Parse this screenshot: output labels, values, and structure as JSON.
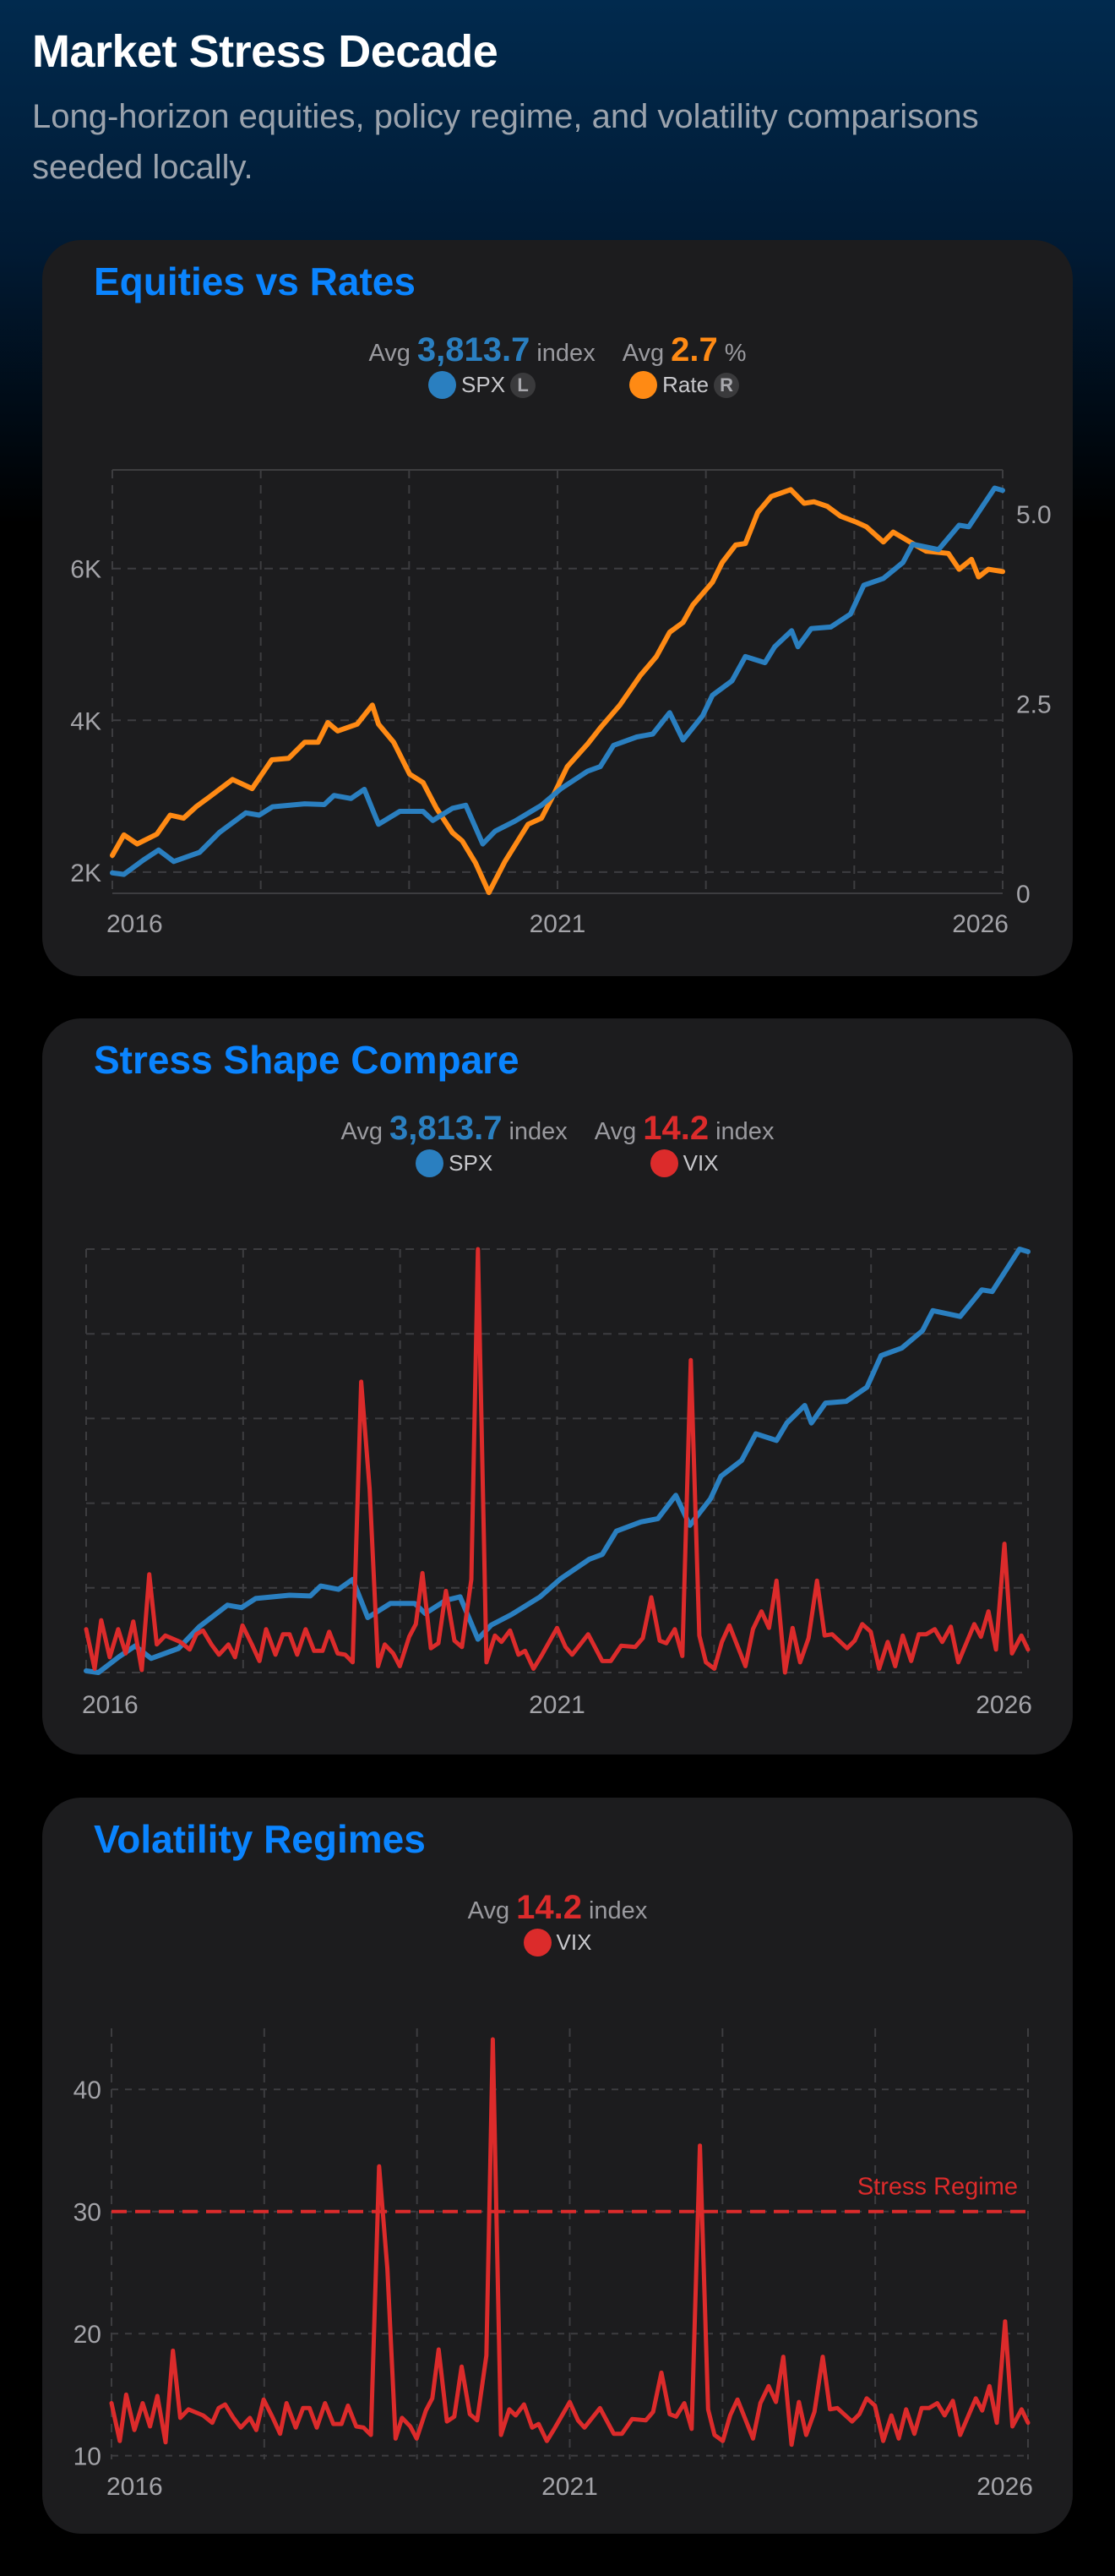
{
  "header": {
    "title": "Market Stress Decade",
    "subtitle": "Long-horizon equities, policy regime, and volatility comparisons seeded locally."
  },
  "colors": {
    "accent": "#0a84ff",
    "spx": "#2a7fc0",
    "rate": "#ff8a14",
    "vix": "#dc2b2b",
    "card": "#1c1c1e"
  },
  "cards": [
    {
      "title": "Equities vs Rates",
      "legend": [
        {
          "avg_label": "Avg",
          "avg_value": "3,813.7",
          "unit": "index",
          "series": "SPX",
          "axis_badge": "L",
          "color": "#2a7fc0"
        },
        {
          "avg_label": "Avg",
          "avg_value": "2.7",
          "unit": "%",
          "series": "Rate",
          "axis_badge": "R",
          "color": "#ff8a14"
        }
      ]
    },
    {
      "title": "Stress Shape Compare",
      "legend": [
        {
          "avg_label": "Avg",
          "avg_value": "3,813.7",
          "unit": "index",
          "series": "SPX",
          "color": "#2a7fc0"
        },
        {
          "avg_label": "Avg",
          "avg_value": "14.2",
          "unit": "index",
          "series": "VIX",
          "color": "#dc2b2b"
        }
      ]
    },
    {
      "title": "Volatility Regimes",
      "legend": [
        {
          "avg_label": "Avg",
          "avg_value": "14.2",
          "unit": "index",
          "series": "VIX",
          "color": "#dc2b2b"
        }
      ]
    }
  ],
  "chart_data": [
    {
      "type": "line",
      "title": "Equities vs Rates",
      "xlim": [
        2016,
        2026
      ],
      "x_ticks": [
        "2016",
        "2021",
        "2026"
      ],
      "y_left": {
        "ticks": [
          "2K",
          "4K",
          "6K"
        ],
        "tick_values": [
          2000,
          4000,
          6000
        ],
        "ylim": [
          1720,
          7300
        ]
      },
      "y_right": {
        "ticks": [
          "0",
          "2.5",
          "5.0"
        ],
        "tick_values": [
          0,
          2.5,
          5.0
        ],
        "ylim": [
          0,
          5.58
        ]
      },
      "grid": true,
      "series": [
        {
          "name": "SPX",
          "axis": "left",
          "color": "#2a7fc0",
          "points": [
            [
              2016.0,
              1990
            ],
            [
              2016.13,
              1970
            ],
            [
              2016.35,
              2160
            ],
            [
              2016.52,
              2290
            ],
            [
              2016.69,
              2140
            ],
            [
              2016.98,
              2260
            ],
            [
              2017.2,
              2520
            ],
            [
              2017.5,
              2780
            ],
            [
              2017.65,
              2750
            ],
            [
              2017.8,
              2860
            ],
            [
              2018.16,
              2900
            ],
            [
              2018.38,
              2890
            ],
            [
              2018.49,
              3010
            ],
            [
              2018.68,
              2970
            ],
            [
              2018.83,
              3090
            ],
            [
              2018.99,
              2630
            ],
            [
              2019.23,
              2800
            ],
            [
              2019.49,
              2800
            ],
            [
              2019.6,
              2680
            ],
            [
              2019.82,
              2840
            ],
            [
              2019.97,
              2880
            ],
            [
              2020.16,
              2370
            ],
            [
              2020.3,
              2540
            ],
            [
              2020.52,
              2670
            ],
            [
              2020.82,
              2880
            ],
            [
              2021.04,
              3100
            ],
            [
              2021.34,
              3330
            ],
            [
              2021.48,
              3390
            ],
            [
              2021.63,
              3670
            ],
            [
              2021.89,
              3780
            ],
            [
              2022.07,
              3820
            ],
            [
              2022.26,
              4100
            ],
            [
              2022.41,
              3740
            ],
            [
              2022.63,
              4060
            ],
            [
              2022.74,
              4330
            ],
            [
              2022.96,
              4520
            ],
            [
              2023.11,
              4840
            ],
            [
              2023.33,
              4760
            ],
            [
              2023.44,
              4970
            ],
            [
              2023.63,
              5180
            ],
            [
              2023.7,
              4970
            ],
            [
              2023.85,
              5210
            ],
            [
              2024.07,
              5230
            ],
            [
              2024.29,
              5400
            ],
            [
              2024.44,
              5780
            ],
            [
              2024.66,
              5870
            ],
            [
              2024.88,
              6080
            ],
            [
              2024.99,
              6320
            ],
            [
              2025.28,
              6250
            ],
            [
              2025.51,
              6570
            ],
            [
              2025.62,
              6550
            ],
            [
              2025.91,
              7060
            ],
            [
              2026.0,
              7030
            ]
          ]
        },
        {
          "name": "Rate",
          "axis": "right",
          "color": "#ff8a14",
          "points": [
            [
              2016.0,
              0.5
            ],
            [
              2016.13,
              0.77
            ],
            [
              2016.28,
              0.65
            ],
            [
              2016.5,
              0.78
            ],
            [
              2016.65,
              1.03
            ],
            [
              2016.8,
              0.99
            ],
            [
              2016.94,
              1.14
            ],
            [
              2017.09,
              1.27
            ],
            [
              2017.35,
              1.5
            ],
            [
              2017.57,
              1.38
            ],
            [
              2017.79,
              1.76
            ],
            [
              2017.98,
              1.78
            ],
            [
              2018.16,
              1.99
            ],
            [
              2018.31,
              1.99
            ],
            [
              2018.42,
              2.25
            ],
            [
              2018.53,
              2.14
            ],
            [
              2018.75,
              2.23
            ],
            [
              2018.92,
              2.48
            ],
            [
              2018.99,
              2.23
            ],
            [
              2019.16,
              1.99
            ],
            [
              2019.34,
              1.57
            ],
            [
              2019.49,
              1.46
            ],
            [
              2019.64,
              1.12
            ],
            [
              2019.82,
              0.8
            ],
            [
              2019.93,
              0.69
            ],
            [
              2020.08,
              0.4
            ],
            [
              2020.23,
              0.01
            ],
            [
              2020.41,
              0.42
            ],
            [
              2020.67,
              0.91
            ],
            [
              2020.82,
              0.99
            ],
            [
              2020.97,
              1.33
            ],
            [
              2021.11,
              1.67
            ],
            [
              2021.34,
              1.97
            ],
            [
              2021.48,
              2.18
            ],
            [
              2021.7,
              2.48
            ],
            [
              2021.93,
              2.87
            ],
            [
              2022.11,
              3.12
            ],
            [
              2022.26,
              3.44
            ],
            [
              2022.41,
              3.57
            ],
            [
              2022.52,
              3.8
            ],
            [
              2022.74,
              4.1
            ],
            [
              2022.85,
              4.36
            ],
            [
              2023.0,
              4.59
            ],
            [
              2023.11,
              4.61
            ],
            [
              2023.25,
              5.02
            ],
            [
              2023.4,
              5.23
            ],
            [
              2023.62,
              5.32
            ],
            [
              2023.77,
              5.14
            ],
            [
              2023.88,
              5.16
            ],
            [
              2024.03,
              5.1
            ],
            [
              2024.18,
              4.97
            ],
            [
              2024.36,
              4.89
            ],
            [
              2024.47,
              4.83
            ],
            [
              2024.66,
              4.63
            ],
            [
              2024.77,
              4.76
            ],
            [
              2024.99,
              4.61
            ],
            [
              2025.14,
              4.51
            ],
            [
              2025.39,
              4.48
            ],
            [
              2025.51,
              4.27
            ],
            [
              2025.65,
              4.4
            ],
            [
              2025.73,
              4.17
            ],
            [
              2025.84,
              4.27
            ],
            [
              2026.0,
              4.24
            ]
          ]
        }
      ]
    },
    {
      "type": "line",
      "title": "Stress Shape Compare",
      "xlim": [
        2016,
        2026
      ],
      "x_ticks": [
        "2016",
        "2021",
        "2026"
      ],
      "y_scale": "each series normalized to its own range",
      "grid": true,
      "series_refs": [
        "SPX",
        "VIX"
      ]
    },
    {
      "type": "line",
      "title": "Volatility Regimes",
      "xlim": [
        2016,
        2026
      ],
      "x_ticks": [
        "2016",
        "2021",
        "2026"
      ],
      "y": {
        "ticks": [
          "10",
          "20",
          "30",
          "40"
        ],
        "tick_values": [
          10,
          20,
          30,
          40
        ],
        "ylim": [
          9.7,
          45
        ]
      },
      "grid": true,
      "reference_line": {
        "label": "Stress Regime",
        "value": 30,
        "color": "#dc2b2b",
        "style": "dashed"
      },
      "series": [
        {
          "name": "VIX",
          "color": "#dc2b2b",
          "points": [
            [
              2016.0,
              14.3
            ],
            [
              2016.09,
              11.2
            ],
            [
              2016.16,
              15.0
            ],
            [
              2016.25,
              12.1
            ],
            [
              2016.34,
              14.3
            ],
            [
              2016.42,
              12.4
            ],
            [
              2016.5,
              14.9
            ],
            [
              2016.59,
              11.1
            ],
            [
              2016.67,
              18.6
            ],
            [
              2016.75,
              13.1
            ],
            [
              2016.84,
              13.8
            ],
            [
              2017.0,
              13.3
            ],
            [
              2017.1,
              12.7
            ],
            [
              2017.17,
              13.9
            ],
            [
              2017.24,
              14.2
            ],
            [
              2017.33,
              13.1
            ],
            [
              2017.41,
              12.3
            ],
            [
              2017.51,
              13.1
            ],
            [
              2017.58,
              12.1
            ],
            [
              2017.66,
              14.6
            ],
            [
              2017.76,
              13.1
            ],
            [
              2017.84,
              11.8
            ],
            [
              2017.91,
              14.3
            ],
            [
              2018.01,
              12.3
            ],
            [
              2018.09,
              13.9
            ],
            [
              2018.16,
              13.9
            ],
            [
              2018.24,
              12.3
            ],
            [
              2018.33,
              14.3
            ],
            [
              2018.42,
              12.6
            ],
            [
              2018.51,
              12.6
            ],
            [
              2018.58,
              14.1
            ],
            [
              2018.67,
              12.4
            ],
            [
              2018.75,
              12.3
            ],
            [
              2018.83,
              11.7
            ],
            [
              2018.92,
              33.7
            ],
            [
              2019.01,
              25.3
            ],
            [
              2019.1,
              11.4
            ],
            [
              2019.17,
              13.1
            ],
            [
              2019.26,
              12.4
            ],
            [
              2019.33,
              11.4
            ],
            [
              2019.43,
              13.7
            ],
            [
              2019.5,
              14.7
            ],
            [
              2019.57,
              18.7
            ],
            [
              2019.66,
              12.8
            ],
            [
              2019.74,
              13.2
            ],
            [
              2019.82,
              17.3
            ],
            [
              2019.91,
              13.4
            ],
            [
              2019.99,
              12.9
            ],
            [
              2020.09,
              18.2
            ],
            [
              2020.16,
              44.1
            ],
            [
              2020.25,
              11.7
            ],
            [
              2020.34,
              13.8
            ],
            [
              2020.41,
              13.3
            ],
            [
              2020.5,
              14.2
            ],
            [
              2020.59,
              12.3
            ],
            [
              2020.66,
              12.6
            ],
            [
              2020.75,
              11.2
            ],
            [
              2020.84,
              12.3
            ],
            [
              2021.0,
              14.4
            ],
            [
              2021.09,
              12.9
            ],
            [
              2021.16,
              12.3
            ],
            [
              2021.33,
              13.9
            ],
            [
              2021.48,
              11.8
            ],
            [
              2021.57,
              11.8
            ],
            [
              2021.68,
              13.0
            ],
            [
              2021.83,
              12.9
            ],
            [
              2021.91,
              13.6
            ],
            [
              2022.0,
              16.8
            ],
            [
              2022.09,
              13.4
            ],
            [
              2022.16,
              13.2
            ],
            [
              2022.25,
              14.3
            ],
            [
              2022.33,
              12.2
            ],
            [
              2022.42,
              35.4
            ],
            [
              2022.51,
              13.8
            ],
            [
              2022.58,
              11.7
            ],
            [
              2022.67,
              11.2
            ],
            [
              2022.75,
              13.3
            ],
            [
              2022.83,
              14.6
            ],
            [
              2023.0,
              11.4
            ],
            [
              2023.08,
              14.3
            ],
            [
              2023.17,
              15.7
            ],
            [
              2023.25,
              14.4
            ],
            [
              2023.33,
              18.1
            ],
            [
              2023.42,
              10.9
            ],
            [
              2023.5,
              14.4
            ],
            [
              2023.58,
              11.7
            ],
            [
              2023.67,
              13.6
            ],
            [
              2023.76,
              18.1
            ],
            [
              2023.84,
              13.8
            ],
            [
              2023.92,
              13.9
            ],
            [
              2024.08,
              12.8
            ],
            [
              2024.16,
              13.4
            ],
            [
              2024.24,
              14.7
            ],
            [
              2024.33,
              14.1
            ],
            [
              2024.42,
              11.2
            ],
            [
              2024.51,
              13.3
            ],
            [
              2024.59,
              11.4
            ],
            [
              2024.67,
              13.8
            ],
            [
              2024.76,
              11.8
            ],
            [
              2024.84,
              13.9
            ],
            [
              2024.92,
              13.9
            ],
            [
              2025.01,
              14.3
            ],
            [
              2025.09,
              13.3
            ],
            [
              2025.18,
              14.5
            ],
            [
              2025.26,
              11.7
            ],
            [
              2025.43,
              14.7
            ],
            [
              2025.5,
              13.7
            ],
            [
              2025.58,
              15.7
            ],
            [
              2025.66,
              12.7
            ],
            [
              2025.75,
              21.0
            ],
            [
              2025.83,
              12.4
            ],
            [
              2025.93,
              13.8
            ],
            [
              2026.0,
              12.7
            ]
          ]
        }
      ]
    }
  ]
}
